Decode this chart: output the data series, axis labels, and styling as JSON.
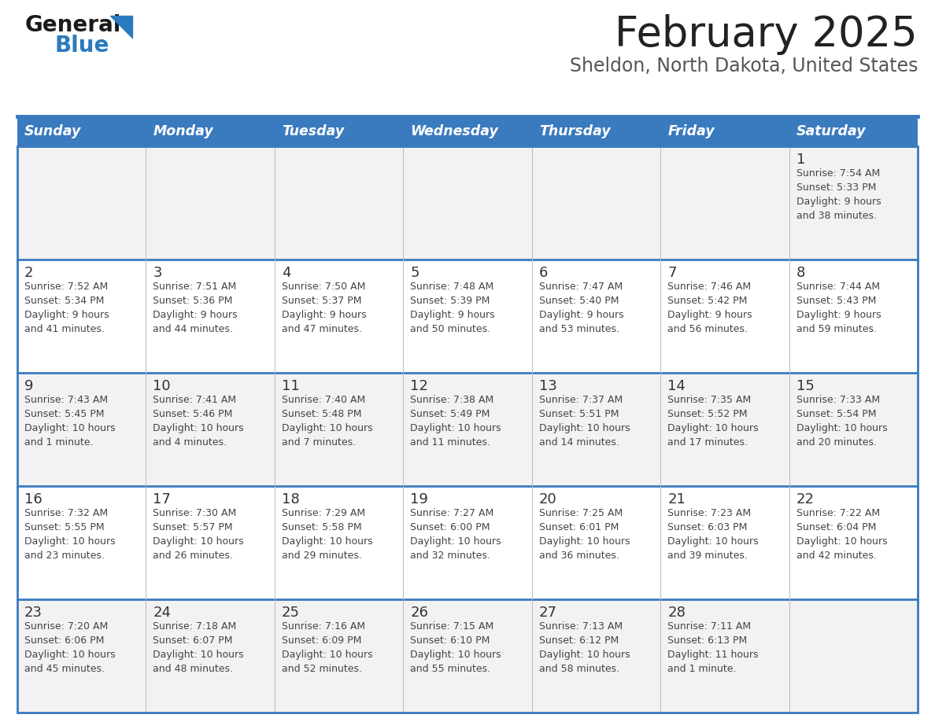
{
  "title": "February 2025",
  "subtitle": "Sheldon, North Dakota, United States",
  "header_bg": "#3a7abf",
  "header_text_color": "#ffffff",
  "days_of_week": [
    "Sunday",
    "Monday",
    "Tuesday",
    "Wednesday",
    "Thursday",
    "Friday",
    "Saturday"
  ],
  "row_bg_odd": "#f2f2f2",
  "row_bg_even": "#ffffff",
  "cell_text_color": "#444444",
  "border_color": "#3a7abf",
  "title_color": "#222222",
  "subtitle_color": "#555555",
  "logo_general_color": "#1a1a1a",
  "logo_blue_color": "#2b7abf",
  "logo_triangle_color": "#2b7abf",
  "calendar": [
    [
      {
        "day": "",
        "lines": []
      },
      {
        "day": "",
        "lines": []
      },
      {
        "day": "",
        "lines": []
      },
      {
        "day": "",
        "lines": []
      },
      {
        "day": "",
        "lines": []
      },
      {
        "day": "",
        "lines": []
      },
      {
        "day": "1",
        "lines": [
          "Sunrise: 7:54 AM",
          "Sunset: 5:33 PM",
          "Daylight: 9 hours",
          "and 38 minutes."
        ]
      }
    ],
    [
      {
        "day": "2",
        "lines": [
          "Sunrise: 7:52 AM",
          "Sunset: 5:34 PM",
          "Daylight: 9 hours",
          "and 41 minutes."
        ]
      },
      {
        "day": "3",
        "lines": [
          "Sunrise: 7:51 AM",
          "Sunset: 5:36 PM",
          "Daylight: 9 hours",
          "and 44 minutes."
        ]
      },
      {
        "day": "4",
        "lines": [
          "Sunrise: 7:50 AM",
          "Sunset: 5:37 PM",
          "Daylight: 9 hours",
          "and 47 minutes."
        ]
      },
      {
        "day": "5",
        "lines": [
          "Sunrise: 7:48 AM",
          "Sunset: 5:39 PM",
          "Daylight: 9 hours",
          "and 50 minutes."
        ]
      },
      {
        "day": "6",
        "lines": [
          "Sunrise: 7:47 AM",
          "Sunset: 5:40 PM",
          "Daylight: 9 hours",
          "and 53 minutes."
        ]
      },
      {
        "day": "7",
        "lines": [
          "Sunrise: 7:46 AM",
          "Sunset: 5:42 PM",
          "Daylight: 9 hours",
          "and 56 minutes."
        ]
      },
      {
        "day": "8",
        "lines": [
          "Sunrise: 7:44 AM",
          "Sunset: 5:43 PM",
          "Daylight: 9 hours",
          "and 59 minutes."
        ]
      }
    ],
    [
      {
        "day": "9",
        "lines": [
          "Sunrise: 7:43 AM",
          "Sunset: 5:45 PM",
          "Daylight: 10 hours",
          "and 1 minute."
        ]
      },
      {
        "day": "10",
        "lines": [
          "Sunrise: 7:41 AM",
          "Sunset: 5:46 PM",
          "Daylight: 10 hours",
          "and 4 minutes."
        ]
      },
      {
        "day": "11",
        "lines": [
          "Sunrise: 7:40 AM",
          "Sunset: 5:48 PM",
          "Daylight: 10 hours",
          "and 7 minutes."
        ]
      },
      {
        "day": "12",
        "lines": [
          "Sunrise: 7:38 AM",
          "Sunset: 5:49 PM",
          "Daylight: 10 hours",
          "and 11 minutes."
        ]
      },
      {
        "day": "13",
        "lines": [
          "Sunrise: 7:37 AM",
          "Sunset: 5:51 PM",
          "Daylight: 10 hours",
          "and 14 minutes."
        ]
      },
      {
        "day": "14",
        "lines": [
          "Sunrise: 7:35 AM",
          "Sunset: 5:52 PM",
          "Daylight: 10 hours",
          "and 17 minutes."
        ]
      },
      {
        "day": "15",
        "lines": [
          "Sunrise: 7:33 AM",
          "Sunset: 5:54 PM",
          "Daylight: 10 hours",
          "and 20 minutes."
        ]
      }
    ],
    [
      {
        "day": "16",
        "lines": [
          "Sunrise: 7:32 AM",
          "Sunset: 5:55 PM",
          "Daylight: 10 hours",
          "and 23 minutes."
        ]
      },
      {
        "day": "17",
        "lines": [
          "Sunrise: 7:30 AM",
          "Sunset: 5:57 PM",
          "Daylight: 10 hours",
          "and 26 minutes."
        ]
      },
      {
        "day": "18",
        "lines": [
          "Sunrise: 7:29 AM",
          "Sunset: 5:58 PM",
          "Daylight: 10 hours",
          "and 29 minutes."
        ]
      },
      {
        "day": "19",
        "lines": [
          "Sunrise: 7:27 AM",
          "Sunset: 6:00 PM",
          "Daylight: 10 hours",
          "and 32 minutes."
        ]
      },
      {
        "day": "20",
        "lines": [
          "Sunrise: 7:25 AM",
          "Sunset: 6:01 PM",
          "Daylight: 10 hours",
          "and 36 minutes."
        ]
      },
      {
        "day": "21",
        "lines": [
          "Sunrise: 7:23 AM",
          "Sunset: 6:03 PM",
          "Daylight: 10 hours",
          "and 39 minutes."
        ]
      },
      {
        "day": "22",
        "lines": [
          "Sunrise: 7:22 AM",
          "Sunset: 6:04 PM",
          "Daylight: 10 hours",
          "and 42 minutes."
        ]
      }
    ],
    [
      {
        "day": "23",
        "lines": [
          "Sunrise: 7:20 AM",
          "Sunset: 6:06 PM",
          "Daylight: 10 hours",
          "and 45 minutes."
        ]
      },
      {
        "day": "24",
        "lines": [
          "Sunrise: 7:18 AM",
          "Sunset: 6:07 PM",
          "Daylight: 10 hours",
          "and 48 minutes."
        ]
      },
      {
        "day": "25",
        "lines": [
          "Sunrise: 7:16 AM",
          "Sunset: 6:09 PM",
          "Daylight: 10 hours",
          "and 52 minutes."
        ]
      },
      {
        "day": "26",
        "lines": [
          "Sunrise: 7:15 AM",
          "Sunset: 6:10 PM",
          "Daylight: 10 hours",
          "and 55 minutes."
        ]
      },
      {
        "day": "27",
        "lines": [
          "Sunrise: 7:13 AM",
          "Sunset: 6:12 PM",
          "Daylight: 10 hours",
          "and 58 minutes."
        ]
      },
      {
        "day": "28",
        "lines": [
          "Sunrise: 7:11 AM",
          "Sunset: 6:13 PM",
          "Daylight: 11 hours",
          "and 1 minute."
        ]
      },
      {
        "day": "",
        "lines": []
      }
    ]
  ]
}
